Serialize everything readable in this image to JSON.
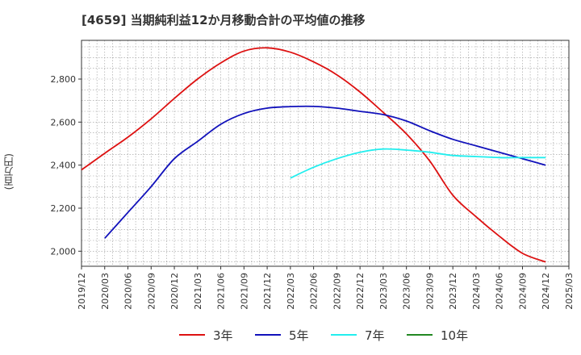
{
  "title": "[4659]  当期純利益12か月移動合計の平均値の推移",
  "chart_data": {
    "type": "line",
    "title": "[4659]  当期純利益12か月移動合計の平均値の推移",
    "ylabel": "(百万円)",
    "xlabel": "",
    "x": [
      "2019/12",
      "2020/03",
      "2020/06",
      "2020/09",
      "2020/12",
      "2021/03",
      "2021/06",
      "2021/09",
      "2021/12",
      "2022/03",
      "2022/06",
      "2022/09",
      "2022/12",
      "2023/03",
      "2023/06",
      "2023/09",
      "2023/12",
      "2024/03",
      "2024/06",
      "2024/09",
      "2024/12",
      "2025/03"
    ],
    "ylim": [
      1930,
      2980
    ],
    "yticks": [
      2000,
      2200,
      2400,
      2600,
      2800
    ],
    "ytick_labels": [
      "2,000",
      "2,200",
      "2,400",
      "2,600",
      "2,800"
    ],
    "grid": true,
    "legend_position": "bottom",
    "series": [
      {
        "name": "3年",
        "color": "#dd1111",
        "values": [
          2378,
          2455,
          2530,
          2615,
          2710,
          2800,
          2875,
          2930,
          2945,
          2925,
          2880,
          2820,
          2740,
          2645,
          2545,
          2420,
          2260,
          2160,
          2070,
          1990,
          1950,
          null
        ]
      },
      {
        "name": "5年",
        "color": "#1111bb",
        "values": [
          null,
          2060,
          2180,
          2300,
          2430,
          2510,
          2590,
          2640,
          2665,
          2672,
          2673,
          2665,
          2650,
          2635,
          2605,
          2560,
          2520,
          2490,
          2460,
          2430,
          2400,
          null
        ]
      },
      {
        "name": "7年",
        "color": "#22eeee",
        "values": [
          null,
          null,
          null,
          null,
          null,
          null,
          null,
          null,
          null,
          2340,
          2390,
          2430,
          2460,
          2475,
          2470,
          2460,
          2445,
          2440,
          2435,
          2435,
          2435,
          null
        ]
      },
      {
        "name": "10年",
        "color": "#228822",
        "values": [
          null,
          null,
          null,
          null,
          null,
          null,
          null,
          null,
          null,
          null,
          null,
          null,
          null,
          null,
          null,
          null,
          null,
          null,
          null,
          null,
          null,
          null
        ]
      }
    ]
  }
}
